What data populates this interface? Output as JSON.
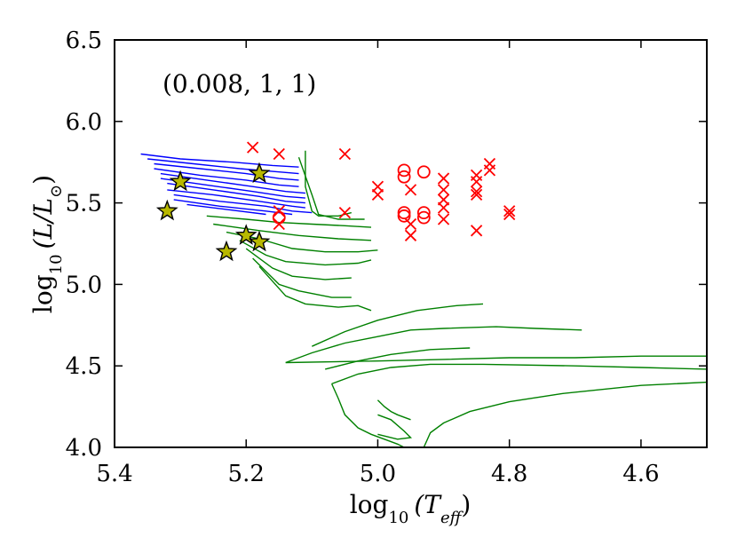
{
  "chart_data": {
    "type": "scatter",
    "title": "",
    "annotation": "(0.008, 1, 1)",
    "xlabel": {
      "base": "log",
      "sub": "10",
      "arg": "(T",
      "argsub": "eff",
      "close": ")"
    },
    "ylabel": {
      "base": "log",
      "sub": "10",
      "arg": "(L/L",
      "argsub": "⊙",
      "close": ")"
    },
    "xlim": [
      5.4,
      4.5
    ],
    "ylim": [
      4.0,
      6.5
    ],
    "x_ticks": [
      5.4,
      5.2,
      5.0,
      4.8,
      4.6
    ],
    "x_tick_labels": [
      "5.4",
      "5.2",
      "5.0",
      "4.8",
      "4.6"
    ],
    "y_ticks": [
      4.0,
      4.5,
      5.0,
      5.5,
      6.0,
      6.5
    ],
    "y_tick_labels": [
      "4.0",
      "4.5",
      "5.0",
      "5.5",
      "6.0",
      "6.5"
    ],
    "grid": false,
    "colors": {
      "blue_tracks": "#0000ff",
      "green_tracks": "#008000",
      "crosses": "#ff0000",
      "circles": "#ff0000",
      "stars_fill": "#b8b800",
      "stars_edge": "#000000"
    },
    "series": [
      {
        "name": "blue_tracks",
        "kind": "lines",
        "lines": [
          [
            [
              5.36,
              5.8
            ],
            [
              5.3,
              5.77
            ],
            [
              5.22,
              5.75
            ],
            [
              5.16,
              5.73
            ],
            [
              5.12,
              5.72
            ]
          ],
          [
            [
              5.35,
              5.77
            ],
            [
              5.28,
              5.74
            ],
            [
              5.21,
              5.71
            ],
            [
              5.15,
              5.69
            ],
            [
              5.12,
              5.68
            ]
          ],
          [
            [
              5.34,
              5.74
            ],
            [
              5.27,
              5.71
            ],
            [
              5.2,
              5.68
            ],
            [
              5.15,
              5.65
            ],
            [
              5.12,
              5.64
            ]
          ],
          [
            [
              5.34,
              5.71
            ],
            [
              5.27,
              5.67
            ],
            [
              5.2,
              5.64
            ],
            [
              5.15,
              5.61
            ],
            [
              5.12,
              5.6
            ]
          ],
          [
            [
              5.33,
              5.68
            ],
            [
              5.26,
              5.64
            ],
            [
              5.19,
              5.6
            ],
            [
              5.14,
              5.57
            ],
            [
              5.11,
              5.56
            ]
          ],
          [
            [
              5.33,
              5.65
            ],
            [
              5.26,
              5.61
            ],
            [
              5.19,
              5.57
            ],
            [
              5.14,
              5.54
            ],
            [
              5.11,
              5.53
            ]
          ],
          [
            [
              5.32,
              5.62
            ],
            [
              5.25,
              5.58
            ],
            [
              5.18,
              5.54
            ],
            [
              5.14,
              5.51
            ],
            [
              5.11,
              5.5
            ]
          ],
          [
            [
              5.32,
              5.58
            ],
            [
              5.25,
              5.55
            ],
            [
              5.18,
              5.51
            ],
            [
              5.13,
              5.48
            ],
            [
              5.11,
              5.47
            ]
          ],
          [
            [
              5.31,
              5.55
            ],
            [
              5.24,
              5.51
            ],
            [
              5.17,
              5.48
            ],
            [
              5.13,
              5.45
            ],
            [
              5.1,
              5.44
            ]
          ],
          [
            [
              5.31,
              5.52
            ],
            [
              5.24,
              5.48
            ],
            [
              5.17,
              5.45
            ],
            [
              5.13,
              5.43
            ]
          ],
          [
            [
              5.29,
              5.49
            ],
            [
              5.23,
              5.46
            ],
            [
              5.17,
              5.43
            ]
          ]
        ]
      },
      {
        "name": "green_tracks",
        "kind": "lines",
        "lines": [
          [
            [
              5.11,
              5.82
            ],
            [
              5.11,
              5.6
            ],
            [
              5.1,
              5.45
            ],
            [
              5.09,
              5.42
            ],
            [
              5.06,
              5.42
            ],
            [
              5.04,
              5.44
            ]
          ],
          [
            [
              5.12,
              5.78
            ],
            [
              5.1,
              5.55
            ],
            [
              5.09,
              5.43
            ],
            [
              5.06,
              5.4
            ],
            [
              5.02,
              5.4
            ]
          ],
          [
            [
              5.26,
              5.42
            ],
            [
              5.2,
              5.4
            ],
            [
              5.15,
              5.38
            ],
            [
              5.1,
              5.37
            ],
            [
              5.05,
              5.36
            ],
            [
              5.01,
              5.35
            ]
          ],
          [
            [
              5.25,
              5.37
            ],
            [
              5.18,
              5.33
            ],
            [
              5.12,
              5.3
            ],
            [
              5.06,
              5.28
            ],
            [
              5.01,
              5.27
            ]
          ],
          [
            [
              5.23,
              5.32
            ],
            [
              5.18,
              5.28
            ],
            [
              5.13,
              5.22
            ],
            [
              5.08,
              5.2
            ],
            [
              5.03,
              5.2
            ],
            [
              5.0,
              5.21
            ]
          ],
          [
            [
              5.21,
              5.27
            ],
            [
              5.17,
              5.18
            ],
            [
              5.14,
              5.14
            ],
            [
              5.08,
              5.12
            ],
            [
              5.03,
              5.13
            ],
            [
              5.01,
              5.15
            ]
          ],
          [
            [
              5.2,
              5.22
            ],
            [
              5.16,
              5.1
            ],
            [
              5.13,
              5.05
            ],
            [
              5.08,
              5.03
            ],
            [
              5.04,
              5.04
            ]
          ],
          [
            [
              5.19,
              5.16
            ],
            [
              5.15,
              5.0
            ],
            [
              5.12,
              4.96
            ],
            [
              5.07,
              4.92
            ],
            [
              5.04,
              4.92
            ]
          ],
          [
            [
              5.18,
              5.11
            ],
            [
              5.14,
              4.93
            ],
            [
              5.11,
              4.88
            ],
            [
              5.06,
              4.86
            ],
            [
              5.03,
              4.87
            ],
            [
              5.01,
              4.84
            ]
          ],
          [
            [
              5.1,
              4.62
            ],
            [
              5.05,
              4.71
            ],
            [
              5.0,
              4.78
            ],
            [
              4.94,
              4.84
            ],
            [
              4.88,
              4.87
            ],
            [
              4.84,
              4.88
            ]
          ],
          [
            [
              5.14,
              4.52
            ],
            [
              5.1,
              4.58
            ],
            [
              5.05,
              4.64
            ],
            [
              5.0,
              4.68
            ],
            [
              4.95,
              4.72
            ],
            [
              4.9,
              4.73
            ],
            [
              4.82,
              4.74
            ],
            [
              4.76,
              4.73
            ],
            [
              4.69,
              4.72
            ]
          ],
          [
            [
              5.08,
              4.48
            ],
            [
              5.03,
              4.53
            ],
            [
              4.98,
              4.57
            ],
            [
              4.92,
              4.6
            ],
            [
              4.86,
              4.61
            ]
          ],
          [
            [
              5.14,
              4.52
            ],
            [
              5.0,
              4.53
            ],
            [
              4.9,
              4.54
            ],
            [
              4.8,
              4.55
            ],
            [
              4.7,
              4.55
            ],
            [
              4.6,
              4.56
            ],
            [
              4.5,
              4.56
            ]
          ],
          [
            [
              5.07,
              4.39
            ],
            [
              5.03,
              4.45
            ],
            [
              4.98,
              4.49
            ],
            [
              4.92,
              4.51
            ],
            [
              4.84,
              4.51
            ],
            [
              4.7,
              4.5
            ],
            [
              4.6,
              4.49
            ],
            [
              4.5,
              4.48
            ]
          ],
          [
            [
              5.07,
              4.39
            ],
            [
              5.06,
              4.3
            ],
            [
              5.05,
              4.2
            ],
            [
              5.03,
              4.12
            ],
            [
              5.01,
              4.08
            ],
            [
              4.99,
              4.05
            ],
            [
              4.97,
              4.02
            ],
            [
              4.96,
              4.0
            ]
          ],
          [
            [
              5.0,
              4.2
            ],
            [
              4.98,
              4.17
            ],
            [
              4.96,
              4.1
            ],
            [
              4.95,
              4.06
            ],
            [
              4.97,
              4.05
            ],
            [
              5.0,
              4.08
            ]
          ],
          [
            [
              5.0,
              4.29
            ],
            [
              4.99,
              4.25
            ],
            [
              4.98,
              4.22
            ],
            [
              4.97,
              4.2
            ],
            [
              4.95,
              4.17
            ]
          ],
          [
            [
              4.93,
              4.0
            ],
            [
              4.92,
              4.09
            ],
            [
              4.9,
              4.15
            ],
            [
              4.86,
              4.22
            ],
            [
              4.8,
              4.28
            ],
            [
              4.72,
              4.33
            ],
            [
              4.6,
              4.38
            ],
            [
              4.5,
              4.4
            ]
          ]
        ]
      },
      {
        "name": "crosses",
        "kind": "x-markers",
        "points": [
          [
            5.19,
            5.84
          ],
          [
            5.15,
            5.8
          ],
          [
            5.05,
            5.8
          ],
          [
            5.15,
            5.45
          ],
          [
            5.15,
            5.37
          ],
          [
            5.05,
            5.44
          ],
          [
            5.0,
            5.6
          ],
          [
            5.0,
            5.55
          ],
          [
            4.95,
            5.58
          ],
          [
            4.95,
            5.37
          ],
          [
            4.95,
            5.3
          ],
          [
            4.9,
            5.65
          ],
          [
            4.9,
            5.58
          ],
          [
            4.9,
            5.52
          ],
          [
            4.9,
            5.47
          ],
          [
            4.9,
            5.4
          ],
          [
            4.85,
            5.67
          ],
          [
            4.85,
            5.63
          ],
          [
            4.85,
            5.57
          ],
          [
            4.85,
            5.55
          ],
          [
            4.85,
            5.33
          ],
          [
            4.83,
            5.74
          ],
          [
            4.83,
            5.7
          ],
          [
            4.8,
            5.45
          ],
          [
            4.8,
            5.43
          ]
        ]
      },
      {
        "name": "circles",
        "kind": "o-markers",
        "points": [
          [
            5.15,
            5.41
          ],
          [
            4.96,
            5.7
          ],
          [
            4.96,
            5.66
          ],
          [
            4.93,
            5.69
          ],
          [
            4.96,
            5.44
          ],
          [
            4.96,
            5.42
          ],
          [
            4.93,
            5.44
          ],
          [
            4.93,
            5.41
          ]
        ]
      },
      {
        "name": "stars",
        "kind": "star-markers",
        "points": [
          [
            5.32,
            5.45
          ],
          [
            5.3,
            5.63
          ],
          [
            5.18,
            5.68
          ],
          [
            5.2,
            5.3
          ],
          [
            5.18,
            5.26
          ],
          [
            5.23,
            5.2
          ]
        ]
      }
    ]
  }
}
